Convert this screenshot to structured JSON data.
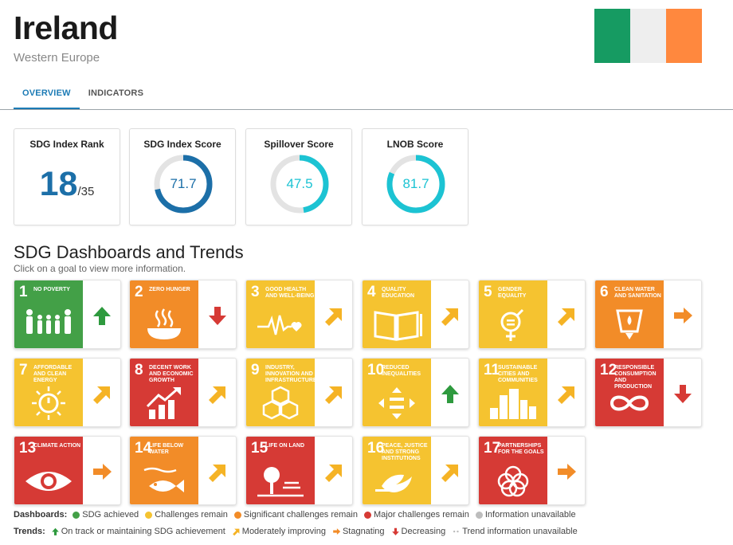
{
  "header": {
    "title": "Ireland",
    "region": "Western Europe",
    "flag_colors": [
      "#169b62",
      "#eeeeee",
      "#ff883e"
    ]
  },
  "tabs": [
    {
      "label": "OVERVIEW",
      "active": true
    },
    {
      "label": "INDICATORS",
      "active": false
    }
  ],
  "scores": {
    "rank": {
      "title": "SDG Index Rank",
      "value": "18",
      "total": "/35"
    },
    "index": {
      "title": "SDG Index Score",
      "value": "71.7",
      "color": "#1c6fa8"
    },
    "spillover": {
      "title": "Spillover Score",
      "value": "47.5",
      "color": "#1cc3d3"
    },
    "lnob": {
      "title": "LNOB Score",
      "value": "81.7",
      "color": "#1cc3d3"
    }
  },
  "dashboards": {
    "title": "SDG Dashboards and Trends",
    "subtitle": "Click on a goal to view more information."
  },
  "goals": [
    {
      "num": "1",
      "label": "NO POVERTY",
      "color": "#43a047",
      "trend": "up-green",
      "icon": "family-icon"
    },
    {
      "num": "2",
      "label": "ZERO HUNGER",
      "color": "#f28c28",
      "trend": "down-red",
      "icon": "bowl-icon"
    },
    {
      "num": "3",
      "label": "GOOD HEALTH AND WELL-BEING",
      "color": "#f5c330",
      "trend": "diag-yellow",
      "icon": "heartbeat-icon"
    },
    {
      "num": "4",
      "label": "QUALITY EDUCATION",
      "color": "#f5c330",
      "trend": "diag-yellow",
      "icon": "book-icon"
    },
    {
      "num": "5",
      "label": "GENDER EQUALITY",
      "color": "#f5c330",
      "trend": "diag-yellow",
      "icon": "gender-icon"
    },
    {
      "num": "6",
      "label": "CLEAN WATER AND SANITATION",
      "color": "#f28c28",
      "trend": "right-orange",
      "icon": "water-icon"
    },
    {
      "num": "7",
      "label": "AFFORDABLE AND CLEAN ENERGY",
      "color": "#f5c330",
      "trend": "diag-yellow",
      "icon": "sun-power-icon"
    },
    {
      "num": "8",
      "label": "DECENT WORK AND ECONOMIC GROWTH",
      "color": "#d63a35",
      "trend": "diag-yellow",
      "icon": "growth-chart-icon"
    },
    {
      "num": "9",
      "label": "INDUSTRY, INNOVATION AND INFRASTRUCTURE",
      "color": "#f5c330",
      "trend": "diag-yellow",
      "icon": "cubes-icon"
    },
    {
      "num": "10",
      "label": "REDUCED INEQUALITIES",
      "color": "#f5c330",
      "trend": "up-green",
      "icon": "equality-icon"
    },
    {
      "num": "11",
      "label": "SUSTAINABLE CITIES AND COMMUNITIES",
      "color": "#f5c330",
      "trend": "diag-yellow",
      "icon": "city-icon"
    },
    {
      "num": "12",
      "label": "RESPONSIBLE CONSUMPTION AND PRODUCTION",
      "color": "#d63a35",
      "trend": "down-red",
      "icon": "infinity-icon"
    },
    {
      "num": "13",
      "label": "CLIMATE ACTION",
      "color": "#d63a35",
      "trend": "right-orange",
      "icon": "eye-globe-icon"
    },
    {
      "num": "14",
      "label": "LIFE BELOW WATER",
      "color": "#f28c28",
      "trend": "diag-yellow",
      "icon": "fish-icon"
    },
    {
      "num": "15",
      "label": "LIFE ON LAND",
      "color": "#d63a35",
      "trend": "diag-yellow",
      "icon": "tree-icon"
    },
    {
      "num": "16",
      "label": "PEACE, JUSTICE AND STRONG INSTITUTIONS",
      "color": "#f5c330",
      "trend": "diag-yellow",
      "icon": "dove-icon"
    },
    {
      "num": "17",
      "label": "PARTNERSHIPS FOR THE GOALS",
      "color": "#d63a35",
      "trend": "right-orange",
      "icon": "rings-icon"
    }
  ],
  "legend_dashboards": {
    "heading": "Dashboards:",
    "items": [
      {
        "label": "SDG achieved",
        "color": "#43a047"
      },
      {
        "label": "Challenges remain",
        "color": "#f5c330"
      },
      {
        "label": "Significant challenges remain",
        "color": "#f28c28"
      },
      {
        "label": "Major challenges remain",
        "color": "#d63a35"
      },
      {
        "label": "Information unavailable",
        "color": "#bdbdbd"
      }
    ]
  },
  "legend_trends": {
    "heading": "Trends:",
    "items": [
      {
        "label": "On track or maintaining SDG achievement",
        "icon": "up-green"
      },
      {
        "label": "Moderately improving",
        "icon": "diag-yellow"
      },
      {
        "label": "Stagnating",
        "icon": "right-orange"
      },
      {
        "label": "Decreasing",
        "icon": "down-red"
      },
      {
        "label": "Trend information unavailable",
        "icon": "dots-grey"
      }
    ]
  }
}
